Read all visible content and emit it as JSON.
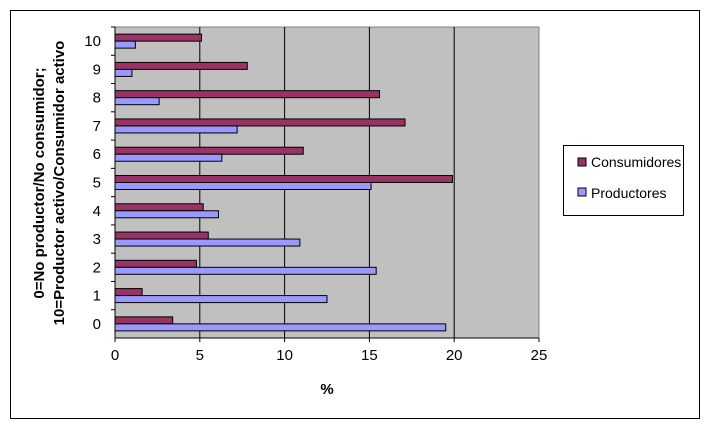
{
  "chart_data": {
    "type": "bar",
    "orientation": "horizontal",
    "categories": [
      "0",
      "1",
      "2",
      "3",
      "4",
      "5",
      "6",
      "7",
      "8",
      "9",
      "10"
    ],
    "series": [
      {
        "name": "Consumidores",
        "color": "#993366",
        "values": [
          3.4,
          1.6,
          4.8,
          5.5,
          5.2,
          19.9,
          11.1,
          17.1,
          15.6,
          7.8,
          5.1
        ]
      },
      {
        "name": "Productores",
        "color": "#9999ff",
        "values": [
          19.5,
          12.5,
          15.4,
          10.9,
          6.1,
          15.1,
          6.3,
          7.2,
          2.6,
          1.0,
          1.2
        ]
      }
    ],
    "xlim": [
      0,
      25
    ],
    "xticks": [
      "0",
      "5",
      "10",
      "15",
      "20",
      "25"
    ],
    "xlabel": "%",
    "ylabel_lines": [
      "0=No productor/No consumidor;",
      "10=Productor activo/Consumidor activo"
    ],
    "plot_background": "#c0c0c0",
    "gridlines": "vertical",
    "legend_position": "right"
  }
}
